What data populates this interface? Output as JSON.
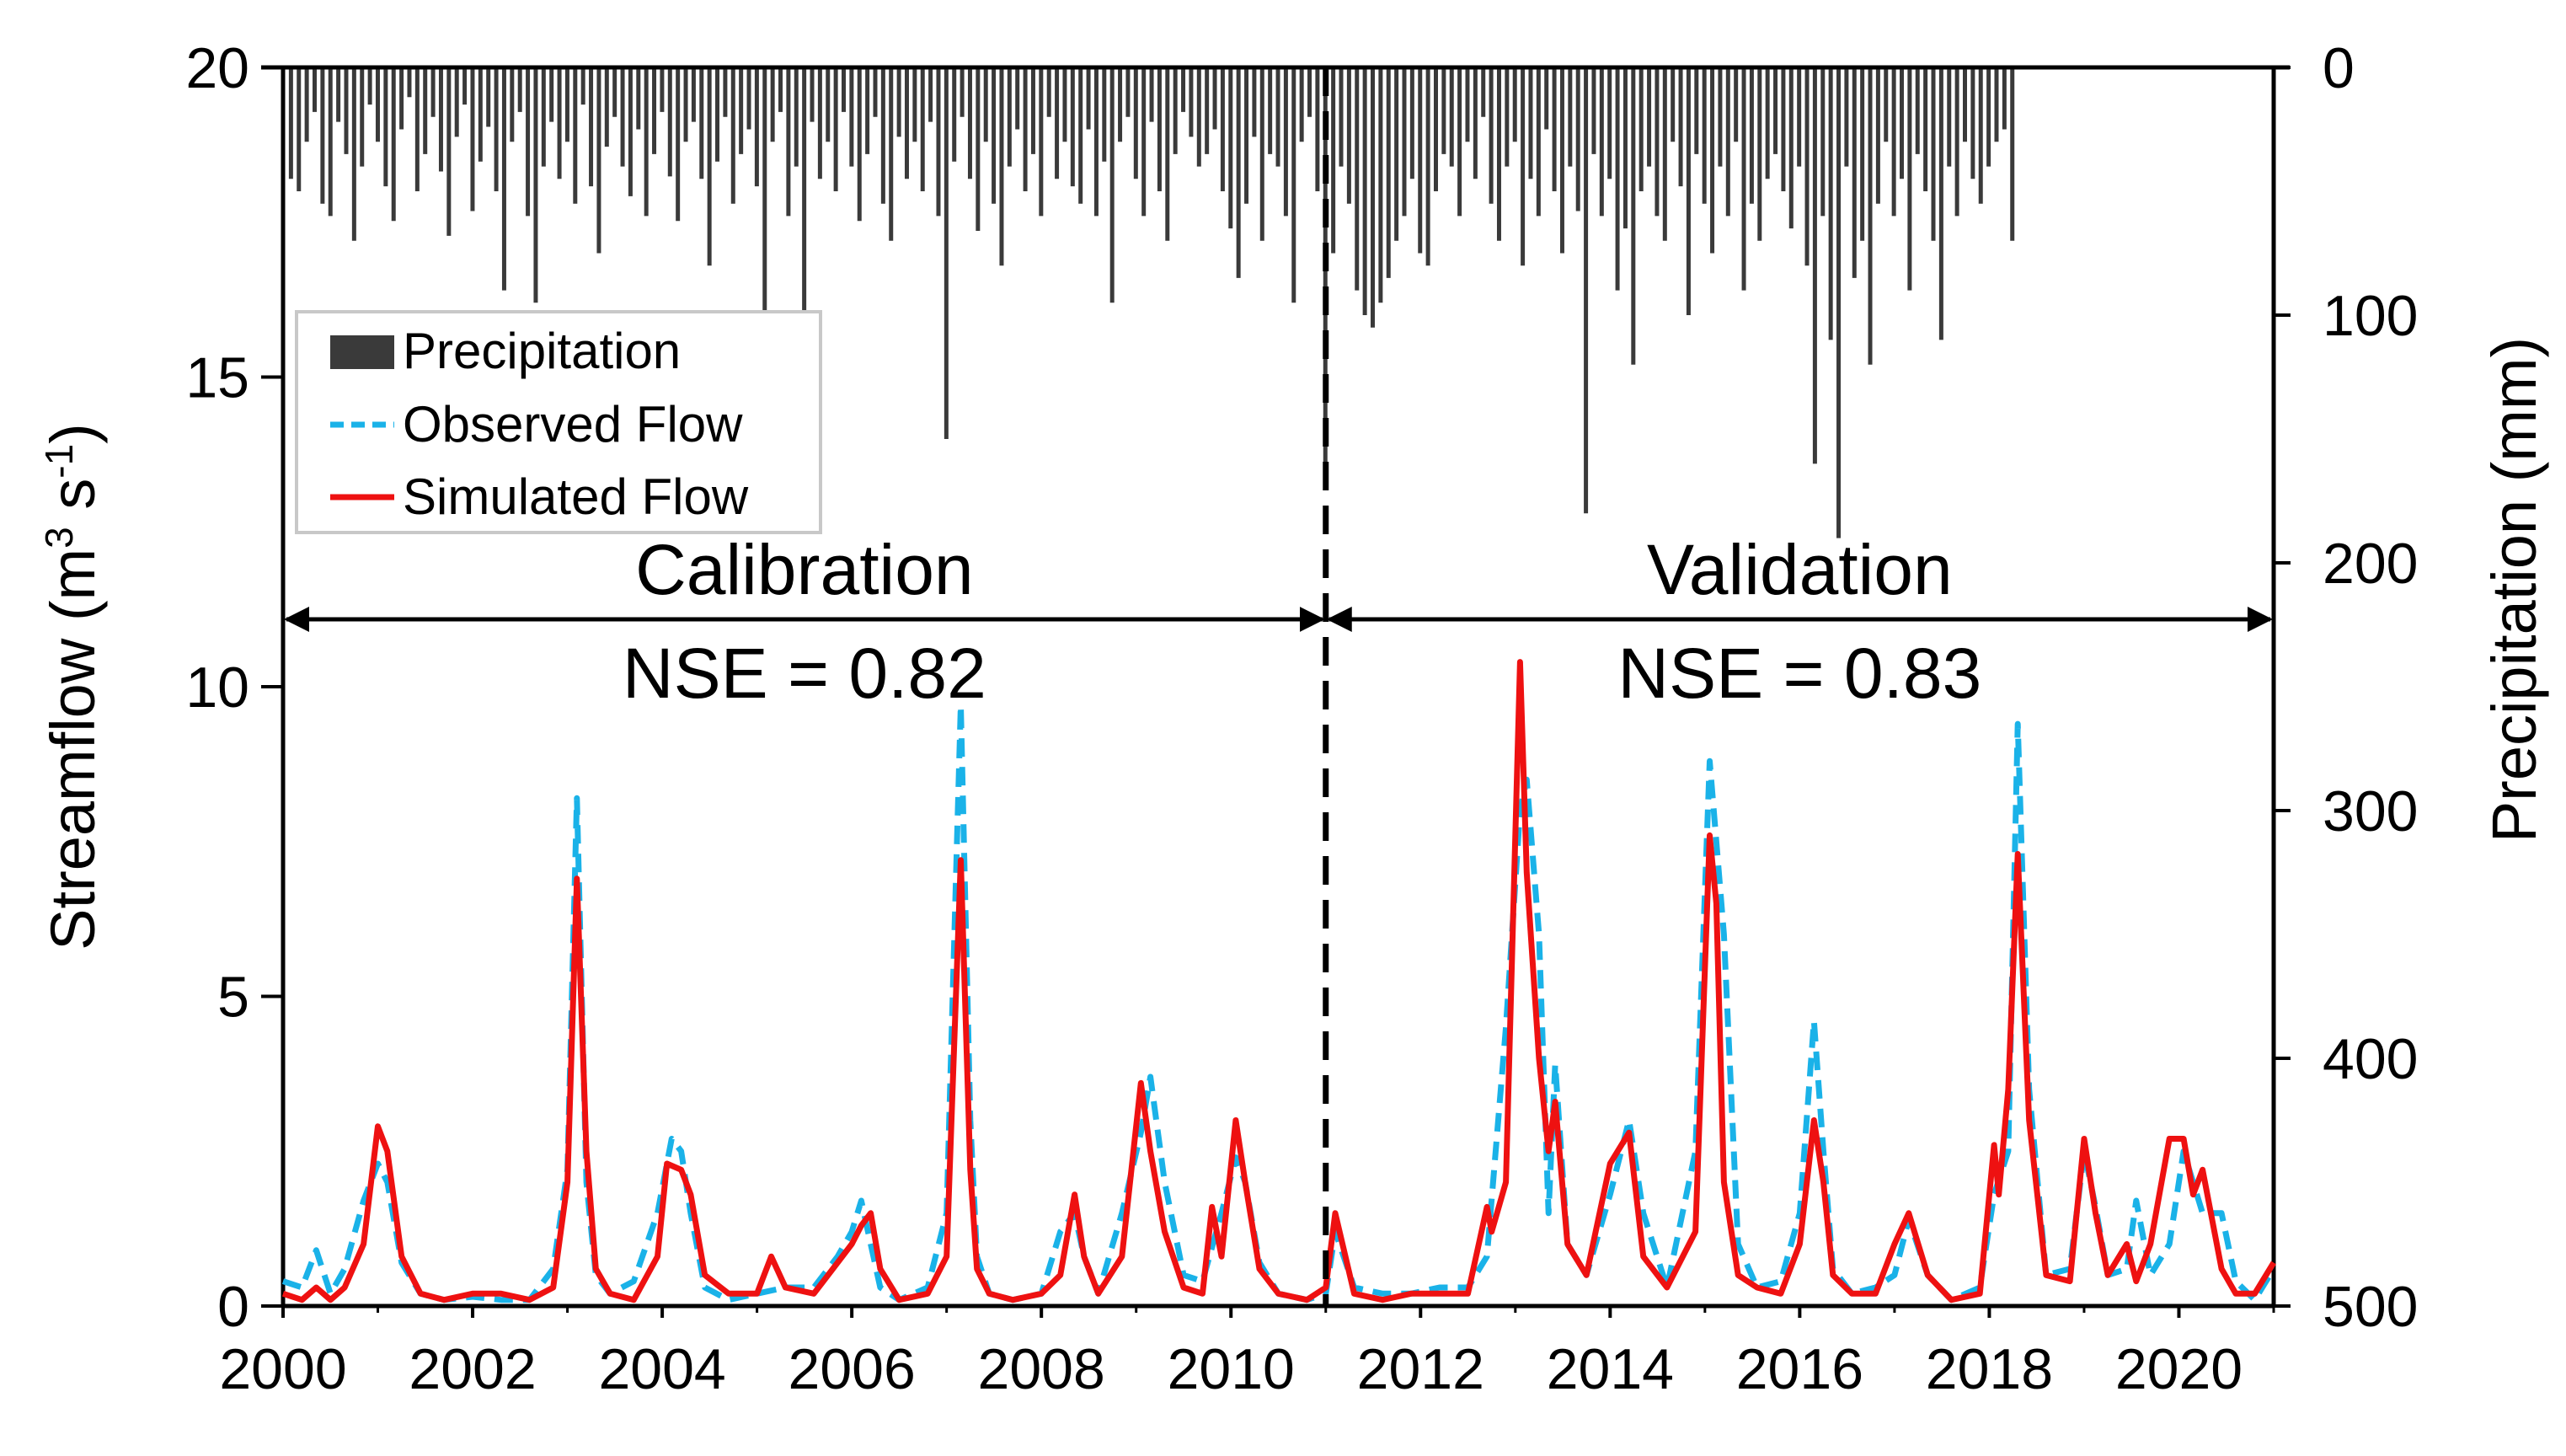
{
  "chart_data": {
    "type": "line",
    "title": "",
    "xlabel": "",
    "ylabel": "Streamflow (m",
    "ylabel_sup1": "3",
    "ylabel_mid": " s",
    "ylabel_sup2": "-1",
    "ylabel_end": ")",
    "y2label": "Precipitation (mm)",
    "xlim": [
      2000,
      2021
    ],
    "ylim": [
      0,
      20
    ],
    "y2lim": [
      0,
      500
    ],
    "y2_inverted": true,
    "x_ticks": [
      "2000",
      "2002",
      "2004",
      "2006",
      "2008",
      "2010",
      "2012",
      "2014",
      "2016",
      "2018",
      "2020"
    ],
    "y_ticks": [
      "0",
      "5",
      "10",
      "15",
      "20"
    ],
    "y2_ticks": [
      "0",
      "100",
      "200",
      "300",
      "400",
      "500"
    ],
    "legend": {
      "position": "upper-left",
      "entries": [
        "Precipitation",
        "Observed Flow",
        "Simulated Flow"
      ]
    },
    "colors": {
      "precipitation": "#3a3a3a",
      "observed": "#1ab2e8",
      "simulated": "#ee1111"
    },
    "periods": [
      {
        "label": "Calibration",
        "stat": "NSE = 0.82",
        "start": 2000,
        "end": 2011
      },
      {
        "label": "Validation",
        "stat": "NSE = 0.83",
        "start": 2011,
        "end": 2021
      }
    ],
    "divider_x": 2011,
    "series": [
      {
        "name": "Observed Flow",
        "style": "dashed",
        "x": [
          2000.0,
          2000.2,
          2000.35,
          2000.5,
          2000.65,
          2000.85,
          2001.0,
          2001.1,
          2001.25,
          2001.45,
          2001.7,
          2002.0,
          2002.3,
          2002.6,
          2002.85,
          2003.0,
          2003.1,
          2003.2,
          2003.3,
          2003.45,
          2003.7,
          2003.95,
          2004.1,
          2004.2,
          2004.3,
          2004.45,
          2004.7,
          2005.0,
          2005.3,
          2005.6,
          2005.85,
          2006.0,
          2006.1,
          2006.2,
          2006.3,
          2006.5,
          2006.8,
          2007.0,
          2007.15,
          2007.25,
          2007.32,
          2007.45,
          2007.7,
          2008.0,
          2008.2,
          2008.35,
          2008.45,
          2008.6,
          2008.85,
          2009.05,
          2009.15,
          2009.3,
          2009.5,
          2009.7,
          2009.9,
          2010.05,
          2010.15,
          2010.3,
          2010.5,
          2010.8,
          2011.0,
          2011.1,
          2011.3,
          2011.6,
          2011.9,
          2012.2,
          2012.5,
          2012.7,
          2012.9,
          2013.05,
          2013.12,
          2013.25,
          2013.35,
          2013.42,
          2013.55,
          2013.75,
          2014.0,
          2014.2,
          2014.35,
          2014.6,
          2014.9,
          2015.05,
          2015.12,
          2015.2,
          2015.35,
          2015.55,
          2015.8,
          2016.0,
          2016.15,
          2016.25,
          2016.35,
          2016.55,
          2016.8,
          2017.0,
          2017.15,
          2017.35,
          2017.6,
          2017.9,
          2018.05,
          2018.2,
          2018.3,
          2018.42,
          2018.6,
          2018.85,
          2019.0,
          2019.12,
          2019.25,
          2019.45,
          2019.55,
          2019.7,
          2019.9,
          2020.05,
          2020.25,
          2020.45,
          2020.6,
          2020.8,
          2021.0
        ],
        "values": [
          0.4,
          0.3,
          0.9,
          0.2,
          0.6,
          1.7,
          2.3,
          2.0,
          0.7,
          0.2,
          0.1,
          0.15,
          0.1,
          0.1,
          0.6,
          2.2,
          8.2,
          2.0,
          0.5,
          0.2,
          0.4,
          1.5,
          2.7,
          2.5,
          1.5,
          0.3,
          0.1,
          0.2,
          0.3,
          0.3,
          0.8,
          1.2,
          1.7,
          1.0,
          0.3,
          0.1,
          0.3,
          1.5,
          9.7,
          3.0,
          0.8,
          0.2,
          0.1,
          0.2,
          1.2,
          1.5,
          0.8,
          0.2,
          1.5,
          2.8,
          3.7,
          2.0,
          0.5,
          0.4,
          1.5,
          2.4,
          2.0,
          0.7,
          0.2,
          0.1,
          0.2,
          1.2,
          0.3,
          0.2,
          0.2,
          0.3,
          0.3,
          0.8,
          4.5,
          8.0,
          8.5,
          6.0,
          1.5,
          3.9,
          1.0,
          0.5,
          1.8,
          3.0,
          1.5,
          0.3,
          2.5,
          8.8,
          7.5,
          6.0,
          1.0,
          0.3,
          0.4,
          1.5,
          4.6,
          2.5,
          0.6,
          0.2,
          0.3,
          0.5,
          1.4,
          0.5,
          0.1,
          0.3,
          1.8,
          2.5,
          9.4,
          3.5,
          0.5,
          0.6,
          2.5,
          1.6,
          0.5,
          0.6,
          1.7,
          0.5,
          1.0,
          2.5,
          1.5,
          1.5,
          0.4,
          0.1,
          0.6
        ]
      },
      {
        "name": "Simulated Flow",
        "style": "solid",
        "x": [
          2000.0,
          2000.2,
          2000.35,
          2000.5,
          2000.65,
          2000.85,
          2001.0,
          2001.1,
          2001.25,
          2001.45,
          2001.7,
          2002.0,
          2002.3,
          2002.6,
          2002.85,
          2003.0,
          2003.1,
          2003.2,
          2003.3,
          2003.45,
          2003.7,
          2003.95,
          2004.05,
          2004.2,
          2004.3,
          2004.45,
          2004.7,
          2005.0,
          2005.15,
          2005.3,
          2005.6,
          2005.85,
          2006.0,
          2006.1,
          2006.2,
          2006.3,
          2006.5,
          2006.8,
          2007.0,
          2007.15,
          2007.25,
          2007.32,
          2007.45,
          2007.7,
          2008.0,
          2008.2,
          2008.35,
          2008.45,
          2008.6,
          2008.85,
          2009.05,
          2009.15,
          2009.3,
          2009.5,
          2009.7,
          2009.8,
          2009.9,
          2010.05,
          2010.15,
          2010.3,
          2010.5,
          2010.8,
          2011.0,
          2011.1,
          2011.3,
          2011.6,
          2011.9,
          2012.2,
          2012.5,
          2012.7,
          2012.75,
          2012.9,
          2013.05,
          2013.12,
          2013.25,
          2013.35,
          2013.42,
          2013.55,
          2013.75,
          2014.0,
          2014.2,
          2014.35,
          2014.6,
          2014.9,
          2015.05,
          2015.12,
          2015.2,
          2015.35,
          2015.55,
          2015.8,
          2016.0,
          2016.15,
          2016.25,
          2016.35,
          2016.55,
          2016.8,
          2017.0,
          2017.15,
          2017.35,
          2017.6,
          2017.9,
          2018.05,
          2018.1,
          2018.2,
          2018.3,
          2018.42,
          2018.6,
          2018.85,
          2019.0,
          2019.12,
          2019.25,
          2019.45,
          2019.55,
          2019.7,
          2019.9,
          2020.05,
          2020.15,
          2020.25,
          2020.45,
          2020.6,
          2020.8,
          2021.0
        ],
        "values": [
          0.2,
          0.1,
          0.3,
          0.1,
          0.3,
          1.0,
          2.9,
          2.5,
          0.8,
          0.2,
          0.1,
          0.2,
          0.2,
          0.1,
          0.3,
          2.0,
          6.9,
          2.5,
          0.6,
          0.2,
          0.1,
          0.8,
          2.3,
          2.2,
          1.8,
          0.5,
          0.2,
          0.2,
          0.8,
          0.3,
          0.2,
          0.7,
          1.0,
          1.3,
          1.5,
          0.6,
          0.1,
          0.2,
          0.8,
          7.2,
          2.2,
          0.6,
          0.2,
          0.1,
          0.2,
          0.5,
          1.8,
          0.8,
          0.2,
          0.8,
          3.6,
          2.5,
          1.2,
          0.3,
          0.2,
          1.6,
          0.8,
          3.0,
          2.0,
          0.6,
          0.2,
          0.1,
          0.3,
          1.5,
          0.2,
          0.1,
          0.2,
          0.2,
          0.2,
          1.6,
          1.2,
          2.0,
          10.4,
          7.0,
          4.0,
          2.5,
          3.3,
          1.0,
          0.5,
          2.3,
          2.8,
          0.8,
          0.3,
          1.2,
          7.6,
          6.5,
          2.0,
          0.5,
          0.3,
          0.2,
          1.0,
          3.0,
          2.0,
          0.5,
          0.2,
          0.2,
          1.0,
          1.5,
          0.5,
          0.1,
          0.2,
          2.6,
          1.8,
          3.5,
          7.3,
          3.0,
          0.5,
          0.4,
          2.7,
          1.5,
          0.5,
          1.0,
          0.4,
          1.0,
          2.7,
          2.7,
          1.8,
          2.2,
          0.6,
          0.2,
          0.2,
          0.7
        ]
      }
    ],
    "precipitation": {
      "name": "Precipitation",
      "unit": "mm",
      "x_start": 2000.0,
      "step": 0.0833,
      "values": [
        20,
        45,
        50,
        30,
        18,
        55,
        60,
        22,
        35,
        70,
        40,
        15,
        30,
        48,
        62,
        25,
        12,
        50,
        35,
        20,
        42,
        68,
        28,
        15,
        58,
        38,
        24,
        50,
        90,
        30,
        18,
        60,
        95,
        40,
        22,
        45,
        30,
        55,
        15,
        48,
        75,
        32,
        20,
        40,
        52,
        25,
        60,
        35,
        18,
        44,
        62,
        30,
        22,
        45,
        80,
        38,
        20,
        55,
        35,
        25,
        48,
        120,
        30,
        18,
        60,
        40,
        125,
        22,
        45,
        30,
        50,
        18,
        40,
        62,
        35,
        20,
        55,
        70,
        28,
        45,
        30,
        50,
        22,
        60,
        150,
        38,
        20,
        45,
        66,
        30,
        55,
        80,
        40,
        25,
        50,
        35,
        60,
        20,
        45,
        30,
        48,
        55,
        25,
        60,
        38,
        95,
        30,
        20,
        45,
        60,
        22,
        50,
        70,
        35,
        18,
        28,
        40,
        35,
        25,
        50,
        65,
        85,
        55,
        28,
        70,
        35,
        40,
        60,
        95,
        30,
        20,
        50,
        160,
        75,
        40,
        55,
        90,
        100,
        105,
        95,
        85,
        70,
        60,
        45,
        75,
        80,
        50,
        35,
        40,
        60,
        30,
        45,
        20,
        55,
        70,
        40,
        30,
        80,
        45,
        60,
        25,
        50,
        75,
        40,
        58,
        180,
        35,
        60,
        45,
        90,
        65,
        120,
        50,
        40,
        60,
        70,
        30,
        48,
        100,
        35,
        55,
        75,
        40,
        60,
        30,
        90,
        55,
        70,
        45,
        35,
        50,
        65,
        40,
        80,
        160,
        60,
        110,
        190,
        40,
        85,
        70,
        120,
        55,
        30,
        60,
        45,
        90,
        35,
        50,
        70,
        110,
        40,
        60,
        30,
        45,
        55,
        40,
        30,
        25,
        70
      ]
    }
  }
}
